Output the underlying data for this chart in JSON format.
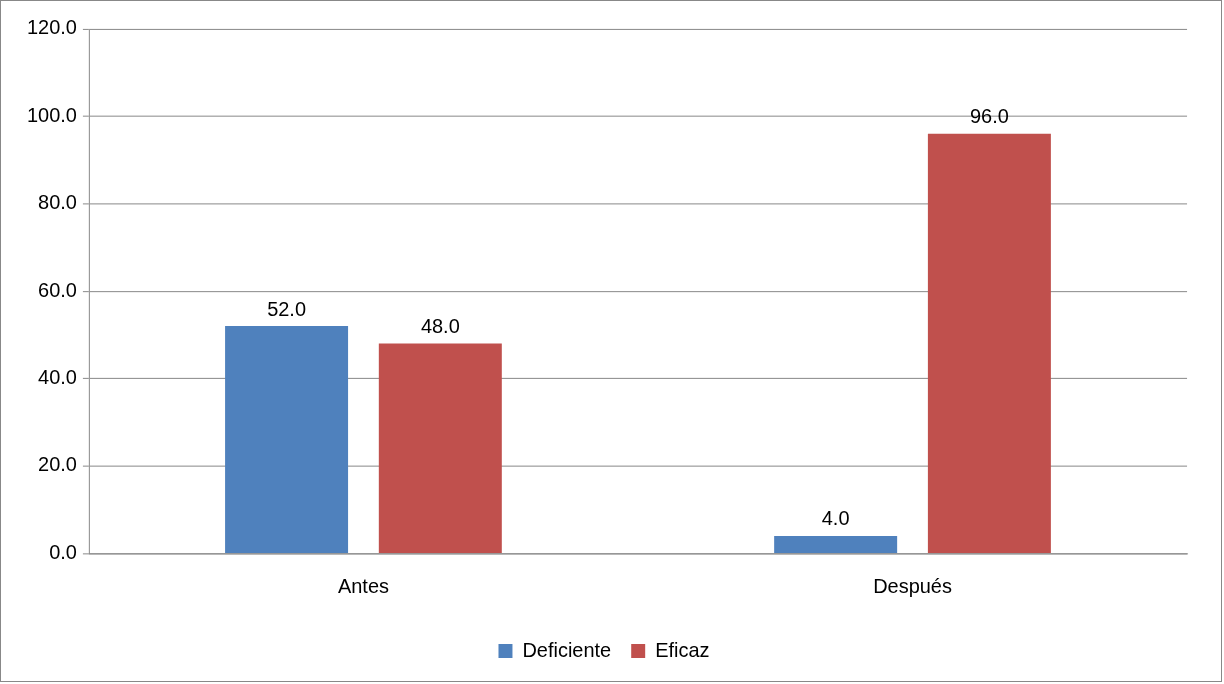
{
  "chart_data": {
    "type": "bar",
    "categories": [
      "Antes",
      "Después"
    ],
    "series": [
      {
        "name": "Deficiente",
        "color": "#4f81bd",
        "values": [
          52,
          4
        ],
        "value_labels": [
          "52.0",
          "4.0"
        ]
      },
      {
        "name": "Eficaz",
        "color": "#c0504d",
        "values": [
          48,
          96
        ],
        "value_labels": [
          "48.0",
          "96.0"
        ]
      }
    ],
    "ylim": [
      0,
      120
    ],
    "yticks": [
      {
        "value": 0,
        "label": "0.0"
      },
      {
        "value": 20,
        "label": "20.0"
      },
      {
        "value": 40,
        "label": "40.0"
      },
      {
        "value": 60,
        "label": "60.0"
      },
      {
        "value": 80,
        "label": "80.0"
      },
      {
        "value": 100,
        "label": "100.0"
      },
      {
        "value": 120,
        "label": "120.0"
      }
    ],
    "grid": "y",
    "legend": "bottom"
  }
}
